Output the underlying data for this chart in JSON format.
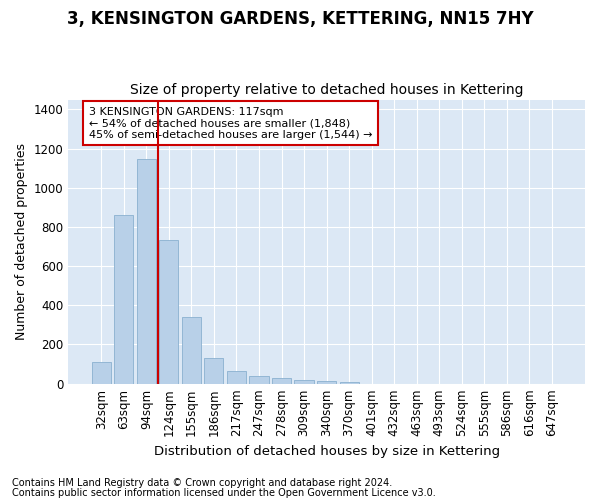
{
  "title": "3, KENSINGTON GARDENS, KETTERING, NN15 7HY",
  "subtitle": "Size of property relative to detached houses in Kettering",
  "xlabel": "Distribution of detached houses by size in Kettering",
  "ylabel": "Number of detached properties",
  "bar_labels": [
    "32sqm",
    "63sqm",
    "94sqm",
    "124sqm",
    "155sqm",
    "186sqm",
    "217sqm",
    "247sqm",
    "278sqm",
    "309sqm",
    "340sqm",
    "370sqm",
    "401sqm",
    "432sqm",
    "463sqm",
    "493sqm",
    "524sqm",
    "555sqm",
    "586sqm",
    "616sqm",
    "647sqm"
  ],
  "bar_values": [
    110,
    860,
    1145,
    735,
    340,
    130,
    65,
    38,
    28,
    18,
    15,
    8,
    0,
    0,
    0,
    0,
    0,
    0,
    0,
    0,
    0
  ],
  "bar_color": "#b8d0e8",
  "bar_edgecolor": "#8ab0d0",
  "vline_x": 2.5,
  "annotation_text": "3 KENSINGTON GARDENS: 117sqm\n← 54% of detached houses are smaller (1,848)\n45% of semi-detached houses are larger (1,544) →",
  "annotation_box_facecolor": "#ffffff",
  "annotation_box_edgecolor": "#cc0000",
  "vline_color": "#cc0000",
  "ylim": [
    0,
    1450
  ],
  "yticks": [
    0,
    200,
    400,
    600,
    800,
    1000,
    1200,
    1400
  ],
  "fig_bg_color": "#ffffff",
  "plot_bg_color": "#dce8f5",
  "grid_color": "#ffffff",
  "title_fontsize": 12,
  "subtitle_fontsize": 10,
  "axis_label_fontsize": 9.5,
  "tick_fontsize": 8.5,
  "annotation_fontsize": 8,
  "footer_fontsize": 7,
  "ylabel_fontsize": 9
}
